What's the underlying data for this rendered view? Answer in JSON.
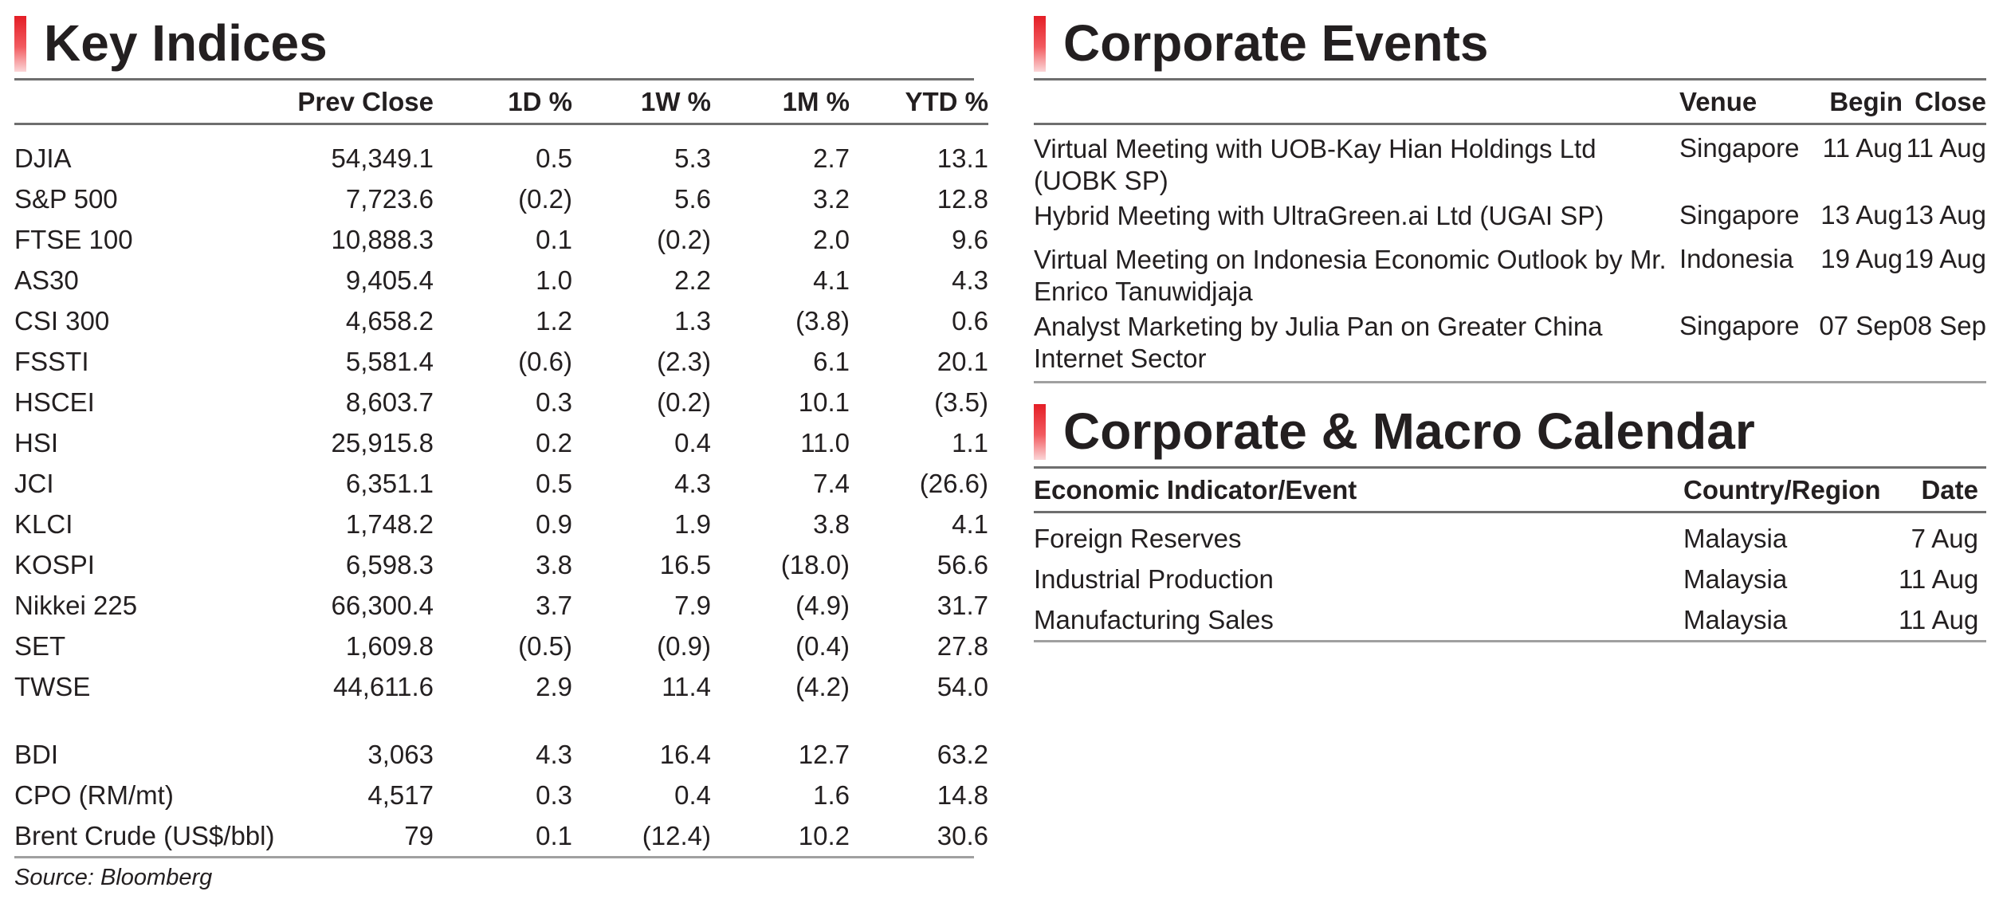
{
  "key_indices": {
    "title": "Key Indices",
    "columns": [
      "Prev Close",
      "1D %",
      "1W %",
      "1M %",
      "YTD %"
    ],
    "rows": [
      {
        "name": "DJIA",
        "prev_close": "54,349.1",
        "d1": "0.5",
        "w1": "5.3",
        "m1": "2.7",
        "ytd": "13.1"
      },
      {
        "name": "S&P 500",
        "prev_close": "7,723.6",
        "d1": "(0.2)",
        "w1": "5.6",
        "m1": "3.2",
        "ytd": "12.8"
      },
      {
        "name": "FTSE 100",
        "prev_close": "10,888.3",
        "d1": "0.1",
        "w1": "(0.2)",
        "m1": "2.0",
        "ytd": "9.6"
      },
      {
        "name": "AS30",
        "prev_close": "9,405.4",
        "d1": "1.0",
        "w1": "2.2",
        "m1": "4.1",
        "ytd": "4.3"
      },
      {
        "name": "CSI 300",
        "prev_close": "4,658.2",
        "d1": "1.2",
        "w1": "1.3",
        "m1": "(3.8)",
        "ytd": "0.6"
      },
      {
        "name": "FSSTI",
        "prev_close": "5,581.4",
        "d1": "(0.6)",
        "w1": "(2.3)",
        "m1": "6.1",
        "ytd": "20.1"
      },
      {
        "name": "HSCEI",
        "prev_close": "8,603.7",
        "d1": "0.3",
        "w1": "(0.2)",
        "m1": "10.1",
        "ytd": "(3.5)"
      },
      {
        "name": "HSI",
        "prev_close": "25,915.8",
        "d1": "0.2",
        "w1": "0.4",
        "m1": "11.0",
        "ytd": "1.1"
      },
      {
        "name": "JCI",
        "prev_close": "6,351.1",
        "d1": "0.5",
        "w1": "4.3",
        "m1": "7.4",
        "ytd": "(26.6)"
      },
      {
        "name": "KLCI",
        "prev_close": "1,748.2",
        "d1": "0.9",
        "w1": "1.9",
        "m1": "3.8",
        "ytd": "4.1"
      },
      {
        "name": "KOSPI",
        "prev_close": "6,598.3",
        "d1": "3.8",
        "w1": "16.5",
        "m1": "(18.0)",
        "ytd": "56.6"
      },
      {
        "name": "Nikkei 225",
        "prev_close": "66,300.4",
        "d1": "3.7",
        "w1": "7.9",
        "m1": "(4.9)",
        "ytd": "31.7"
      },
      {
        "name": "SET",
        "prev_close": "1,609.8",
        "d1": "(0.5)",
        "w1": "(0.9)",
        "m1": "(0.4)",
        "ytd": "27.8"
      },
      {
        "name": "TWSE",
        "prev_close": "44,611.6",
        "d1": "2.9",
        "w1": "11.4",
        "m1": "(4.2)",
        "ytd": "54.0"
      }
    ],
    "commodities": [
      {
        "name": "BDI",
        "prev_close": "3,063",
        "d1": "4.3",
        "w1": "16.4",
        "m1": "12.7",
        "ytd": "63.2"
      },
      {
        "name": "CPO (RM/mt)",
        "prev_close": "4,517",
        "d1": "0.3",
        "w1": "0.4",
        "m1": "1.6",
        "ytd": "14.8"
      },
      {
        "name": "Brent Crude (US$/bbl)",
        "prev_close": "79",
        "d1": "0.1",
        "w1": "(12.4)",
        "m1": "10.2",
        "ytd": "30.6"
      }
    ],
    "source": "Source: Bloomberg"
  },
  "corporate_events": {
    "title": "Corporate Events",
    "columns": [
      "Venue",
      "Begin",
      "Close"
    ],
    "rows": [
      {
        "event": "Virtual Meeting with UOB-Kay Hian Holdings Ltd (UOBK SP)",
        "venue": "Singapore",
        "begin": "11 Aug",
        "close": "11 Aug"
      },
      {
        "event": "Hybrid Meeting with UltraGreen.ai Ltd (UGAI SP)",
        "venue": "Singapore",
        "begin": "13 Aug",
        "close": "13 Aug"
      },
      {
        "event": "Virtual Meeting on Indonesia Economic Outlook by Mr. Enrico Tanuwidjaja",
        "venue": "Indonesia",
        "begin": "19 Aug",
        "close": "19 Aug"
      },
      {
        "event": "Analyst Marketing by Julia Pan on Greater China Internet Sector",
        "venue": "Singapore",
        "begin": "07 Sep",
        "close": "08 Sep"
      }
    ]
  },
  "macro_calendar": {
    "title": "Corporate & Macro Calendar",
    "columns": [
      "Economic Indicator/Event",
      "Country/Region",
      "Date"
    ],
    "rows": [
      {
        "event": "Foreign Reserves",
        "country": "Malaysia",
        "date": "7 Aug"
      },
      {
        "event": "Industrial Production",
        "country": "Malaysia",
        "date": "11 Aug"
      },
      {
        "event": "Manufacturing Sales",
        "country": "Malaysia",
        "date": "11 Aug"
      }
    ]
  },
  "colors": {
    "accent_red": "#e41e26",
    "rule_gray": "#6e6e6e",
    "text": "#231f20"
  }
}
